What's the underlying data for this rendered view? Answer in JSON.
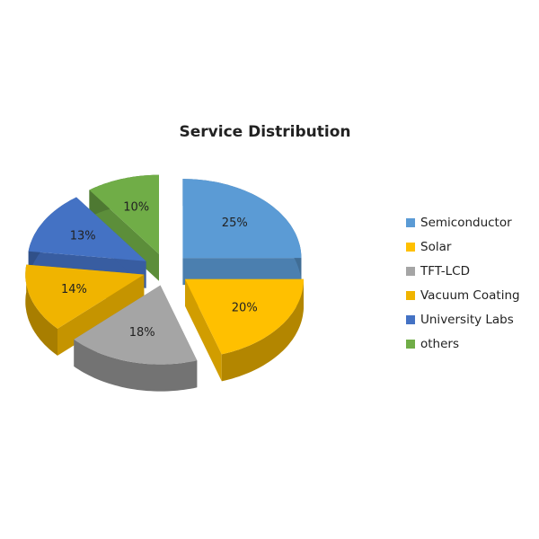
{
  "chart_data": {
    "type": "pie3d",
    "title": "Service Distribution",
    "categories": [
      "Semiconductor",
      "Solar",
      "TFT-LCD",
      "Vacuum Coating",
      "University Labs",
      "others"
    ],
    "values": [
      25,
      20,
      18,
      14,
      13,
      10
    ],
    "value_labels": [
      "25%",
      "20%",
      "18%",
      "14%",
      "13%",
      "10%"
    ],
    "colors": [
      "#5b9bd5",
      "#ffc000",
      "#a5a5a5",
      "#f0b400",
      "#4472c4",
      "#70ad47"
    ],
    "legend": "right"
  }
}
